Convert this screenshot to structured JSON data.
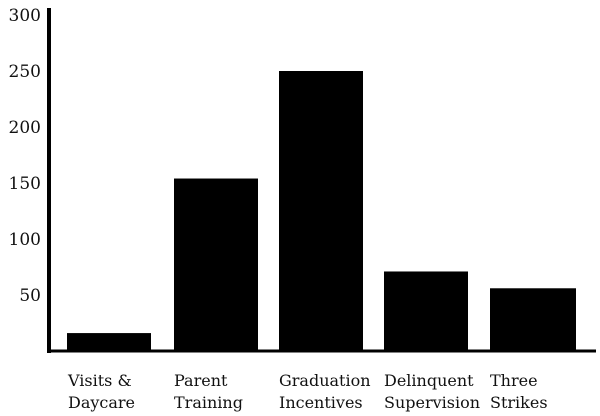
{
  "chart_data": {
    "type": "bar",
    "title": "",
    "xlabel": "",
    "ylabel": "",
    "categories": [
      [
        "Visits &",
        "Daycare"
      ],
      [
        "Parent",
        "Training"
      ],
      [
        "Graduation",
        "Incentives"
      ],
      [
        "Delinquent",
        "Supervision"
      ],
      [
        "Three",
        "Strikes"
      ]
    ],
    "values": [
      16,
      154,
      250,
      71,
      56
    ],
    "ylim": [
      0,
      300
    ],
    "yticks": [
      50,
      100,
      150,
      200,
      250,
      300
    ],
    "grid": false,
    "bar_color": "#000000"
  }
}
